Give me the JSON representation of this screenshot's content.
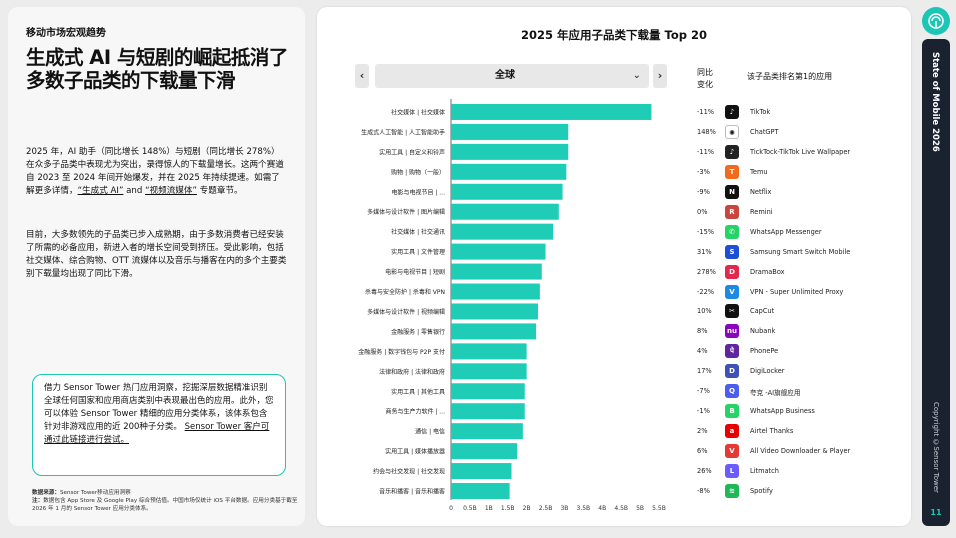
{
  "left": {
    "section": "移动市场宏观趋势",
    "headline": "生成式 AI 与短剧的崛起抵消了多数子品类的下载量下滑",
    "p1_a": "2025 年，AI 助手（同比增长 148%）与短剧（同比增长 278%）在众多子品类中表现尤为突出，录得惊人的下载量增长。这两个赛道自 2023 至 2024 年间开始爆发，并在 2025 年持续提速。如需了解更多详情，",
    "p1_link1": "“生成式 AI”",
    "p1_and": "and",
    "p1_link2": "“视频流媒体”",
    "p1_b": "专题章节。",
    "p2": "目前，大多数领先的子品类已步入成熟期，由于多数消费者已经安装了所需的必备应用，新进入者的增长空间受到挤压。受此影响，包括社交媒体、综合购物、OTT 流媒体以及音乐与播客在内的多个主要类别下载量均出现了同比下滑。",
    "callout_a": "借力 Sensor Tower 热门应用洞察，挖掘深层数据精准识别全球任何国家和应用商店类别中表现最出色的应用。此外，您可以体验 Sensor Tower 精细的应用分类体系，该体系包含针对非游戏应用的近 200种子分类。",
    "callout_link": "Sensor Tower 客户可通过此链接进行尝试。",
    "source_label": "数据来源：",
    "source_text": "Sensor Tower移动应用洞察",
    "note_label": "注：",
    "note_text": "数据包含 App Store 及 Google Play 综合预估值。中国市场仅统计 iOS 平台数据。应用分类基于截至 2026 年 1 月的 Sensor Tower 应用分类体系。"
  },
  "panel": {
    "prev_icon": "chevron-left-icon",
    "next_icon": "chevron-right-icon",
    "prev_glyph": "‹",
    "next_glyph": "›",
    "region_value": "全球",
    "dropdown_glyph": "⌄",
    "header_change_1": "同比",
    "header_change_2": "变化",
    "header_app": "该子品类排名第1的应用"
  },
  "chart_data": {
    "type": "bar",
    "orientation": "horizontal",
    "title": "2025 年应用子品类下载量 Top 20",
    "xlabel": "",
    "ylabel": "",
    "xlim": [
      0,
      5.5
    ],
    "x_ticks": [
      "0",
      "0.5B",
      "1B",
      "1.5B",
      "2B",
      "2.5B",
      "3B",
      "3.5B",
      "4B",
      "4.5B",
      "5B",
      "5.5B"
    ],
    "grid": false,
    "bar_color": "#1fcdb6",
    "categories": [
      "社交媒体 | 社交媒体",
      "生成式人工智能 | 人工智能助手",
      "实用工具 | 自定义和铃声",
      "购物 | 购物（一般）",
      "电影与电视节目 | ...",
      "多媒体与设计软件 | 图片编辑",
      "社交媒体 | 社交通讯",
      "实用工具 | 文件管理",
      "电影与电视节目 | 短剧",
      "杀毒与安全防护 | 杀毒和 VPN",
      "多媒体与设计软件 | 视频编辑",
      "金融服务 | 零售银行",
      "金融服务 | 数字钱包与 P2P 支付",
      "法律和政府 | 法律和政府",
      "实用工具 | 其他工具",
      "商务与生产力软件 | ...",
      "通信 | 电信",
      "实用工具 | 媒体播放器",
      "约会与社交发现 | 社交发现",
      "音乐和播客 | 音乐和播客"
    ],
    "values": [
      5.3,
      3.1,
      3.1,
      3.05,
      2.95,
      2.85,
      2.7,
      2.5,
      2.4,
      2.35,
      2.3,
      2.25,
      2.0,
      2.0,
      1.95,
      1.95,
      1.9,
      1.75,
      1.6,
      1.55
    ],
    "yoy_change": [
      "-11%",
      "148%",
      "-11%",
      "-3%",
      "-9%",
      "0%",
      "-15%",
      "31%",
      "278%",
      "-22%",
      "10%",
      "8%",
      "4%",
      "17%",
      "-7%",
      "-1%",
      "2%",
      "6%",
      "26%",
      "-8%"
    ],
    "top_apps": [
      "TikTok",
      "ChatGPT",
      "TickTock-TikTok Live Wallpaper",
      "Temu",
      "Netflix",
      "Remini",
      "WhatsApp Messenger",
      "Samsung Smart Switch Mobile",
      "DramaBox",
      "VPN - Super Unlimited Proxy",
      "CapCut",
      "Nubank",
      "PhonePe",
      "DigiLocker",
      "夸克 -AI旗舰应用",
      "WhatsApp Business",
      "Airtel Thanks",
      "All Video Downloader & Player",
      "Litmatch",
      "Spotify"
    ],
    "app_icons": [
      "tiktok-icon",
      "chatgpt-icon",
      "ticktock-icon",
      "temu-icon",
      "netflix-icon",
      "remini-icon",
      "whatsapp-icon",
      "samsung-switch-icon",
      "dramabox-icon",
      "vpn-icon",
      "capcut-icon",
      "nubank-icon",
      "phonepe-icon",
      "digilocker-icon",
      "quark-icon",
      "whatsapp-business-icon",
      "airtel-icon",
      "video-downloader-icon",
      "litmatch-icon",
      "spotify-icon"
    ],
    "app_icon_colors": [
      "#111111",
      "#ffffff",
      "#222222",
      "#f26a1b",
      "#111111",
      "#c8463d",
      "#25d366",
      "#1d4fd6",
      "#e0294c",
      "#1e88e5",
      "#111111",
      "#8a05be",
      "#5f259f",
      "#3f51b5",
      "#4b5cf0",
      "#25d366",
      "#e40000",
      "#e53935",
      "#6a5cff",
      "#1db954"
    ],
    "app_icon_glyphs": [
      "♪",
      "✺",
      "♪",
      "T",
      "N",
      "R",
      "✆",
      "S",
      "D",
      "V",
      "✂",
      "nu",
      "पे",
      "D",
      "Q",
      "B",
      "a",
      "V",
      "L",
      "≋"
    ]
  },
  "sidebar": {
    "logo_icon": "sensor-tower-logo-icon",
    "vertical_title": "State of Mobile 2026",
    "copyright": "Copyright ©Sensor Tower",
    "page_number": "11"
  }
}
